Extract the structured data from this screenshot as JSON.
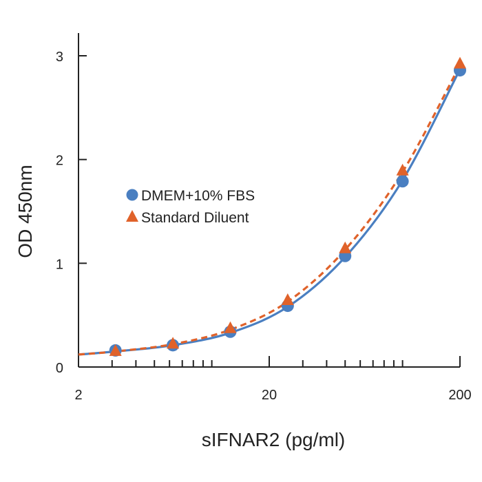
{
  "chart_data": {
    "type": "scatter",
    "xscale": "log",
    "xlim": [
      2,
      200
    ],
    "ylim": [
      0,
      3
    ],
    "xlabel": "sIFNAR2 (pg/ml)",
    "ylabel": "OD 450nm",
    "x_ticks": [
      {
        "value": 2,
        "label": "2"
      },
      {
        "value": 20,
        "label": "20"
      },
      {
        "value": 200,
        "label": "200"
      }
    ],
    "y_ticks": [
      {
        "value": 0,
        "label": "0"
      },
      {
        "value": 1,
        "label": "1"
      },
      {
        "value": 2,
        "label": "2"
      },
      {
        "value": 3,
        "label": "3"
      }
    ],
    "legend_position": "center-left",
    "series": [
      {
        "name": "DMEM+10% FBS",
        "marker": "circle",
        "line": "solid",
        "color": "#4A7FC1",
        "points": [
          {
            "x": 3.125,
            "y": 0.16
          },
          {
            "x": 6.25,
            "y": 0.21
          },
          {
            "x": 12.5,
            "y": 0.34
          },
          {
            "x": 25,
            "y": 0.59
          },
          {
            "x": 50,
            "y": 1.07
          },
          {
            "x": 100,
            "y": 1.79
          },
          {
            "x": 200,
            "y": 2.86
          }
        ],
        "fit_curve": [
          {
            "x": 2,
            "y": 0.12
          },
          {
            "x": 3.125,
            "y": 0.15
          },
          {
            "x": 6.25,
            "y": 0.21
          },
          {
            "x": 12.5,
            "y": 0.33
          },
          {
            "x": 25,
            "y": 0.58
          },
          {
            "x": 50,
            "y": 1.06
          },
          {
            "x": 100,
            "y": 1.8
          },
          {
            "x": 200,
            "y": 2.87
          }
        ]
      },
      {
        "name": "Standard Diluent",
        "marker": "triangle",
        "line": "dashed",
        "color": "#E0622A",
        "points": [
          {
            "x": 3.125,
            "y": 0.15
          },
          {
            "x": 6.25,
            "y": 0.22
          },
          {
            "x": 12.5,
            "y": 0.37
          },
          {
            "x": 25,
            "y": 0.64
          },
          {
            "x": 50,
            "y": 1.14
          },
          {
            "x": 100,
            "y": 1.89
          },
          {
            "x": 200,
            "y": 2.92
          }
        ],
        "fit_curve": [
          {
            "x": 2,
            "y": 0.12
          },
          {
            "x": 3.125,
            "y": 0.15
          },
          {
            "x": 6.25,
            "y": 0.22
          },
          {
            "x": 12.5,
            "y": 0.36
          },
          {
            "x": 25,
            "y": 0.63
          },
          {
            "x": 50,
            "y": 1.13
          },
          {
            "x": 100,
            "y": 1.88
          },
          {
            "x": 200,
            "y": 2.91
          }
        ]
      }
    ]
  }
}
